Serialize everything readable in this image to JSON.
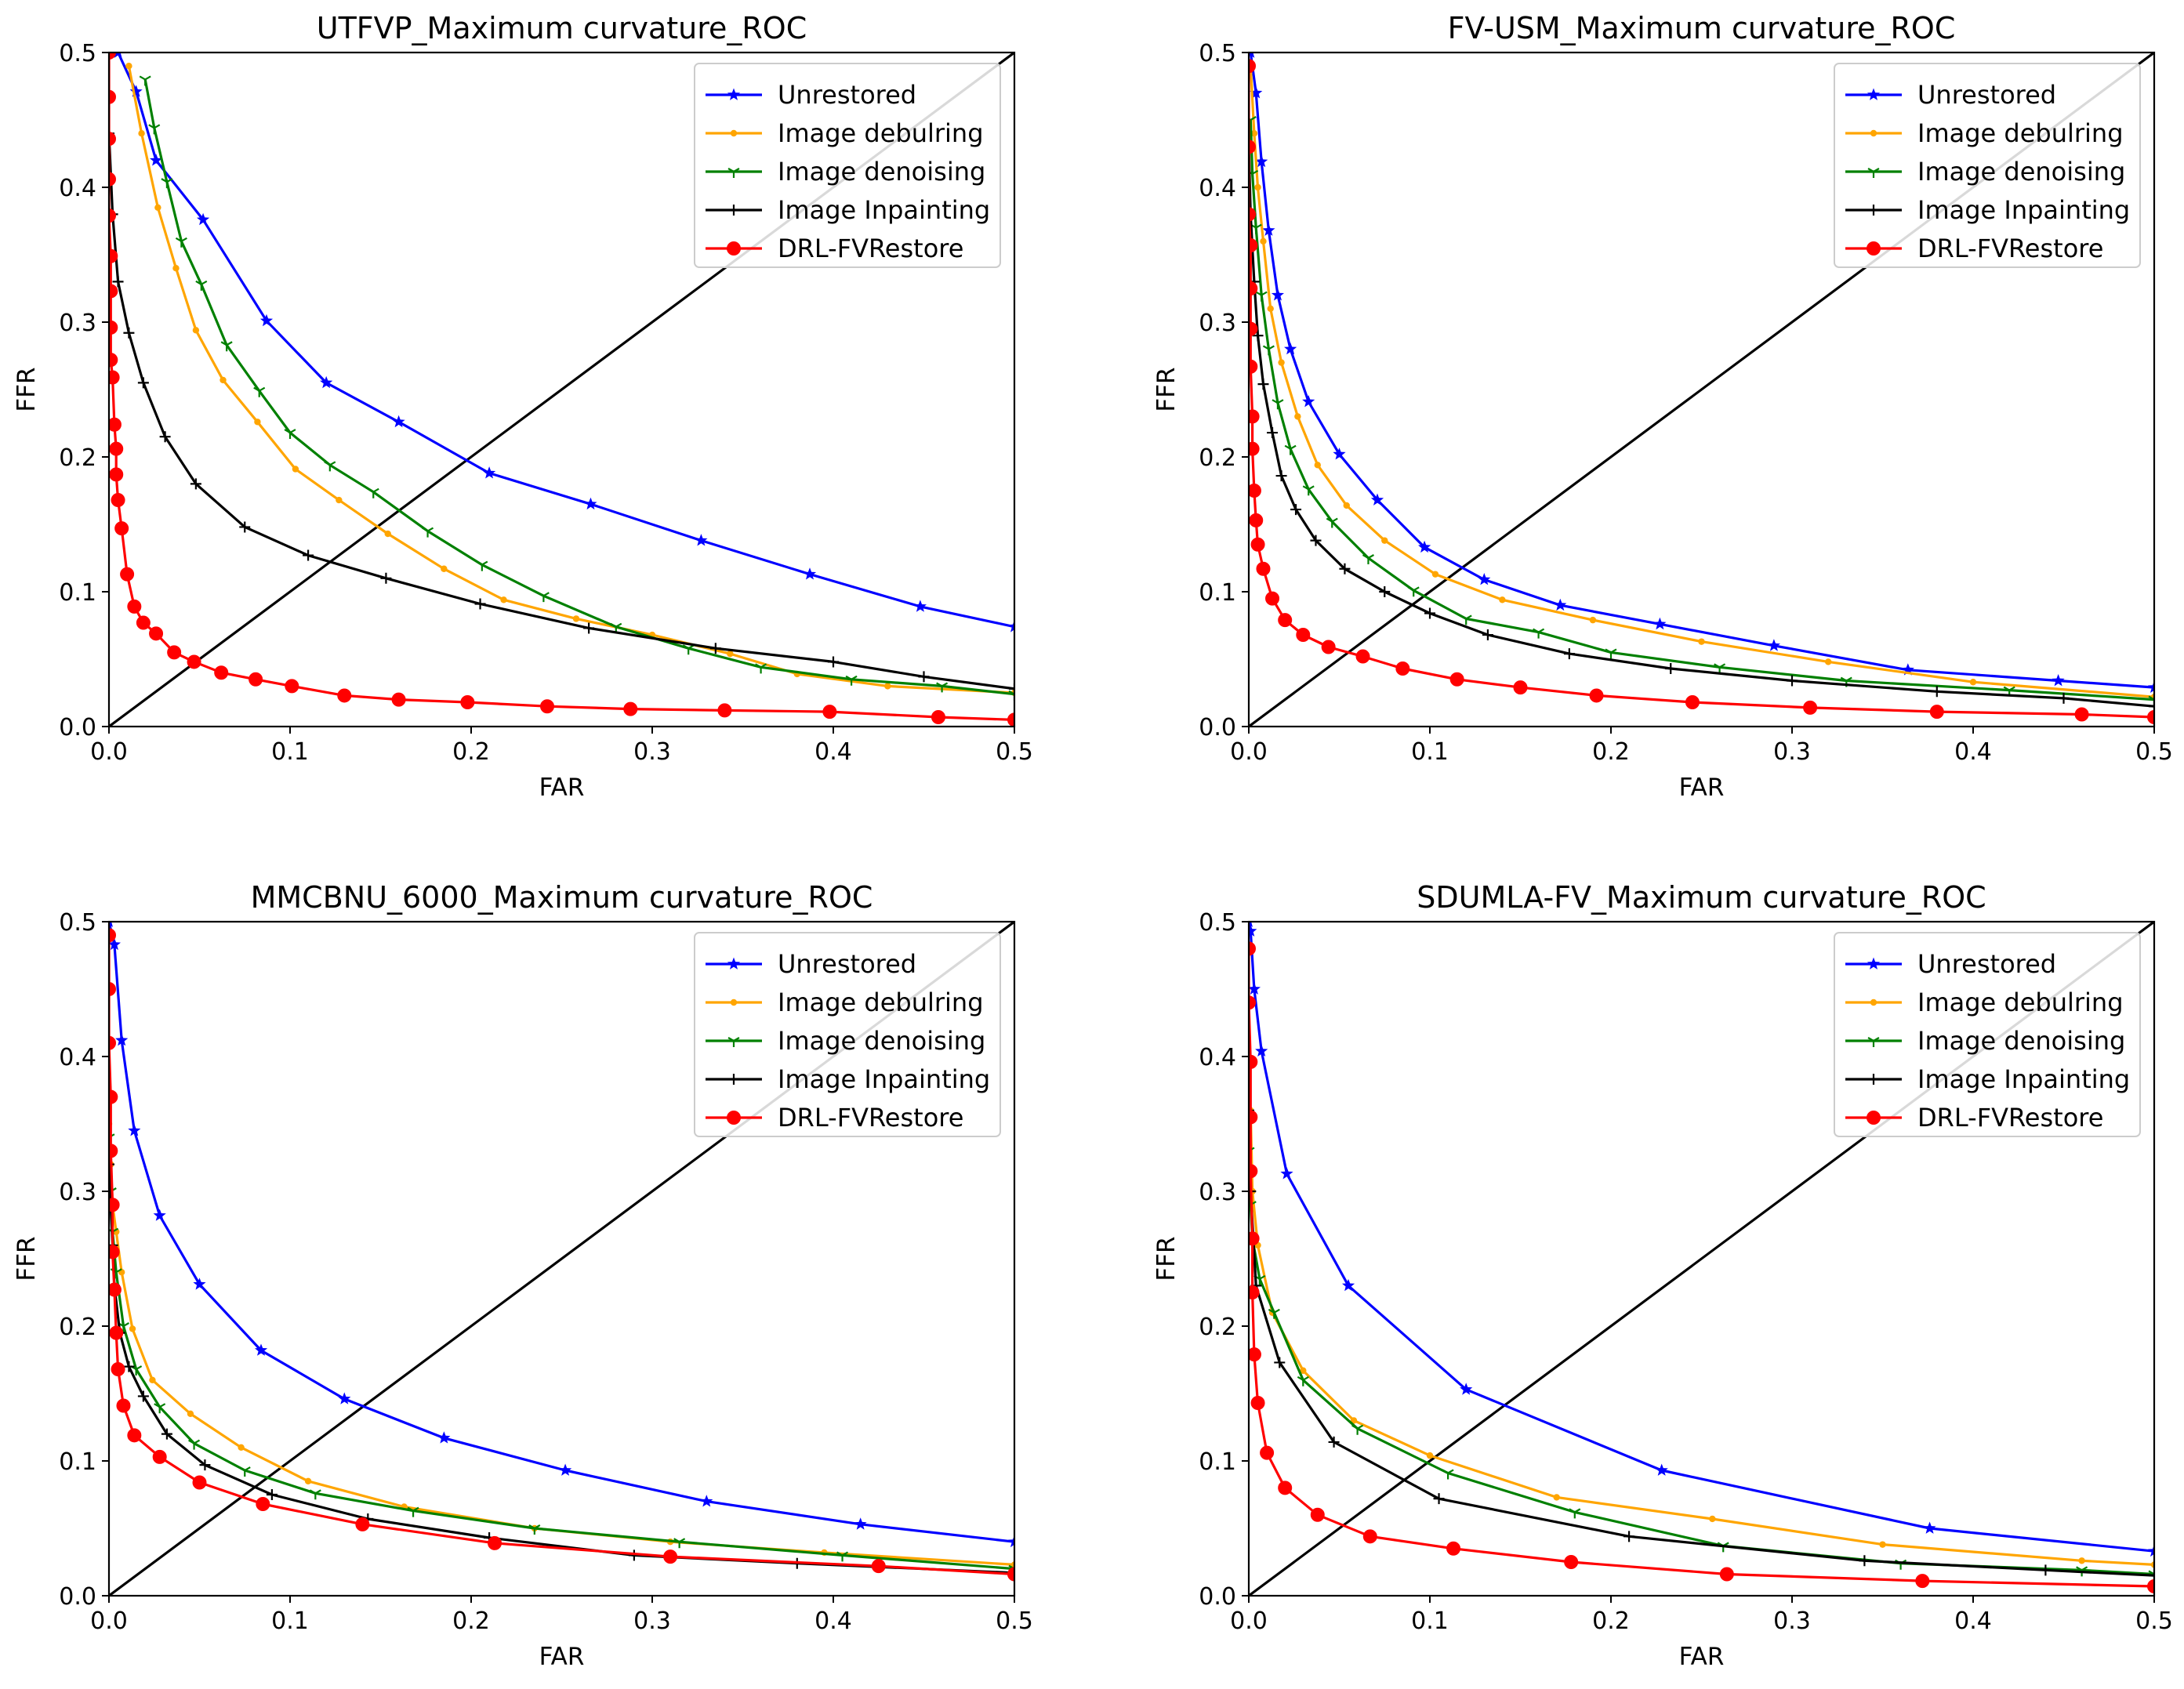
{
  "chart_data": [
    {
      "type": "line",
      "title": "UTFVP_Maximum curvature_ROC",
      "xlabel": "FAR",
      "ylabel": "FFR",
      "xlim": [
        0,
        0.5
      ],
      "ylim": [
        0,
        0.5
      ],
      "xticks": [
        "0.0",
        "0.1",
        "0.2",
        "0.3",
        "0.4",
        "0.5"
      ],
      "yticks": [
        "0.0",
        "0.1",
        "0.2",
        "0.3",
        "0.4",
        "0.5"
      ],
      "legend_position": "top-right",
      "reference_line": {
        "x": [
          0,
          0.5
        ],
        "y": [
          0,
          0.5
        ]
      },
      "series": [
        {
          "name": "Unrestored",
          "color": "#0000ff",
          "marker": "star",
          "x": [
            0.005,
            0.015,
            0.026,
            0.052,
            0.087,
            0.12,
            0.16,
            0.21,
            0.266,
            0.327,
            0.387,
            0.448,
            0.5
          ],
          "y": [
            0.5,
            0.471,
            0.42,
            0.376,
            0.301,
            0.255,
            0.226,
            0.188,
            0.165,
            0.138,
            0.113,
            0.089,
            0.074
          ]
        },
        {
          "name": "Image debulring",
          "color": "#ffa500",
          "marker": "dot",
          "x": [
            0.011,
            0.018,
            0.027,
            0.037,
            0.048,
            0.063,
            0.082,
            0.103,
            0.127,
            0.154,
            0.185,
            0.218,
            0.258,
            0.3,
            0.343,
            0.38,
            0.43,
            0.5
          ],
          "y": [
            0.49,
            0.44,
            0.385,
            0.34,
            0.294,
            0.257,
            0.226,
            0.191,
            0.168,
            0.143,
            0.117,
            0.094,
            0.08,
            0.068,
            0.054,
            0.039,
            0.03,
            0.025
          ]
        },
        {
          "name": "Image denoising",
          "color": "#008000",
          "marker": "tri",
          "x": [
            0.02,
            0.025,
            0.032,
            0.04,
            0.051,
            0.065,
            0.083,
            0.1,
            0.122,
            0.146,
            0.176,
            0.206,
            0.24,
            0.28,
            0.32,
            0.36,
            0.41,
            0.46,
            0.5
          ],
          "y": [
            0.48,
            0.444,
            0.404,
            0.36,
            0.328,
            0.283,
            0.249,
            0.218,
            0.194,
            0.174,
            0.145,
            0.12,
            0.097,
            0.074,
            0.058,
            0.044,
            0.035,
            0.03,
            0.024
          ]
        },
        {
          "name": "Image Inpainting",
          "color": "#000000",
          "marker": "plus",
          "x": [
            0.0,
            0.002,
            0.005,
            0.011,
            0.019,
            0.031,
            0.048,
            0.075,
            0.11,
            0.153,
            0.205,
            0.265,
            0.335,
            0.4,
            0.45,
            0.5
          ],
          "y": [
            0.44,
            0.38,
            0.33,
            0.292,
            0.255,
            0.215,
            0.18,
            0.148,
            0.127,
            0.11,
            0.091,
            0.073,
            0.058,
            0.048,
            0.037,
            0.028
          ]
        },
        {
          "name": "DRL-FVRestore",
          "color": "#ff0000",
          "marker": "circle",
          "x": [
            0.0,
            0.0,
            0.0,
            0.0,
            0.0,
            0.001,
            0.001,
            0.001,
            0.001,
            0.002,
            0.003,
            0.004,
            0.004,
            0.005,
            0.007,
            0.01,
            0.014,
            0.019,
            0.026,
            0.036,
            0.047,
            0.062,
            0.081,
            0.101,
            0.13,
            0.16,
            0.198,
            0.242,
            0.288,
            0.34,
            0.398,
            0.458,
            0.5
          ],
          "y": [
            0.5,
            0.467,
            0.436,
            0.406,
            0.379,
            0.349,
            0.323,
            0.296,
            0.272,
            0.259,
            0.224,
            0.206,
            0.187,
            0.168,
            0.147,
            0.113,
            0.089,
            0.077,
            0.069,
            0.055,
            0.048,
            0.04,
            0.035,
            0.03,
            0.023,
            0.02,
            0.018,
            0.015,
            0.013,
            0.012,
            0.011,
            0.007,
            0.005
          ]
        }
      ]
    },
    {
      "type": "line",
      "title": "FV-USM_Maximum curvature_ROC",
      "xlabel": "FAR",
      "ylabel": "FFR",
      "xlim": [
        0,
        0.5
      ],
      "ylim": [
        0,
        0.5
      ],
      "xticks": [
        "0.0",
        "0.1",
        "0.2",
        "0.3",
        "0.4",
        "0.5"
      ],
      "yticks": [
        "0.0",
        "0.1",
        "0.2",
        "0.3",
        "0.4",
        "0.5"
      ],
      "legend_position": "top-right",
      "reference_line": {
        "x": [
          0,
          0.5
        ],
        "y": [
          0,
          0.5
        ]
      },
      "series": [
        {
          "name": "Unrestored",
          "color": "#0000ff",
          "marker": "star",
          "x": [
            0.001,
            0.004,
            0.007,
            0.011,
            0.016,
            0.023,
            0.033,
            0.05,
            0.071,
            0.097,
            0.13,
            0.172,
            0.227,
            0.29,
            0.364,
            0.447,
            0.5
          ],
          "y": [
            0.5,
            0.47,
            0.419,
            0.368,
            0.32,
            0.28,
            0.241,
            0.202,
            0.168,
            0.133,
            0.109,
            0.09,
            0.076,
            0.06,
            0.042,
            0.034,
            0.029
          ]
        },
        {
          "name": "Image debulring",
          "color": "#ffa500",
          "marker": "dot",
          "x": [
            0.001,
            0.003,
            0.005,
            0.008,
            0.012,
            0.018,
            0.027,
            0.038,
            0.054,
            0.075,
            0.103,
            0.14,
            0.19,
            0.25,
            0.32,
            0.4,
            0.5
          ],
          "y": [
            0.49,
            0.44,
            0.4,
            0.36,
            0.31,
            0.27,
            0.23,
            0.194,
            0.164,
            0.138,
            0.113,
            0.094,
            0.079,
            0.063,
            0.048,
            0.033,
            0.022
          ]
        },
        {
          "name": "Image denoising",
          "color": "#008000",
          "marker": "tri",
          "x": [
            0.001,
            0.002,
            0.004,
            0.007,
            0.011,
            0.016,
            0.023,
            0.033,
            0.046,
            0.066,
            0.091,
            0.12,
            0.16,
            0.2,
            0.26,
            0.33,
            0.42,
            0.5
          ],
          "y": [
            0.45,
            0.41,
            0.37,
            0.32,
            0.28,
            0.24,
            0.206,
            0.176,
            0.152,
            0.125,
            0.101,
            0.08,
            0.07,
            0.055,
            0.044,
            0.034,
            0.027,
            0.02
          ]
        },
        {
          "name": "Image Inpainting",
          "color": "#000000",
          "marker": "plus",
          "x": [
            0.0,
            0.001,
            0.003,
            0.005,
            0.008,
            0.013,
            0.018,
            0.026,
            0.037,
            0.053,
            0.075,
            0.1,
            0.132,
            0.177,
            0.233,
            0.3,
            0.38,
            0.45,
            0.5
          ],
          "y": [
            0.43,
            0.38,
            0.33,
            0.29,
            0.254,
            0.218,
            0.186,
            0.161,
            0.138,
            0.117,
            0.1,
            0.084,
            0.068,
            0.054,
            0.043,
            0.034,
            0.026,
            0.021,
            0.015
          ]
        },
        {
          "name": "DRL-FVRestore",
          "color": "#ff0000",
          "marker": "circle",
          "x": [
            0.0,
            0.0,
            0.0,
            0.001,
            0.001,
            0.001,
            0.001,
            0.002,
            0.002,
            0.003,
            0.004,
            0.005,
            0.008,
            0.013,
            0.02,
            0.03,
            0.044,
            0.063,
            0.085,
            0.115,
            0.15,
            0.192,
            0.245,
            0.31,
            0.38,
            0.46,
            0.5
          ],
          "y": [
            0.49,
            0.43,
            0.38,
            0.357,
            0.325,
            0.295,
            0.267,
            0.23,
            0.206,
            0.175,
            0.153,
            0.135,
            0.117,
            0.095,
            0.079,
            0.068,
            0.059,
            0.052,
            0.043,
            0.035,
            0.029,
            0.023,
            0.018,
            0.014,
            0.011,
            0.009,
            0.007
          ]
        }
      ]
    },
    {
      "type": "line",
      "title": "MMCBNU_6000_Maximum curvature_ROC",
      "xlabel": "FAR",
      "ylabel": "FFR",
      "xlim": [
        0,
        0.5
      ],
      "ylim": [
        0,
        0.5
      ],
      "xticks": [
        "0.0",
        "0.1",
        "0.2",
        "0.3",
        "0.4",
        "0.5"
      ],
      "yticks": [
        "0.0",
        "0.1",
        "0.2",
        "0.3",
        "0.4",
        "0.5"
      ],
      "legend_position": "top-right",
      "reference_line": {
        "x": [
          0,
          0.5
        ],
        "y": [
          0,
          0.5
        ]
      },
      "series": [
        {
          "name": "Unrestored",
          "color": "#0000ff",
          "marker": "star",
          "x": [
            0.0,
            0.003,
            0.007,
            0.014,
            0.028,
            0.05,
            0.084,
            0.13,
            0.185,
            0.252,
            0.33,
            0.415,
            0.5
          ],
          "y": [
            0.5,
            0.483,
            0.412,
            0.345,
            0.282,
            0.231,
            0.182,
            0.146,
            0.117,
            0.093,
            0.07,
            0.053,
            0.04
          ]
        },
        {
          "name": "Image debulring",
          "color": "#ffa500",
          "marker": "dot",
          "x": [
            0.0,
            0.001,
            0.002,
            0.004,
            0.007,
            0.013,
            0.024,
            0.045,
            0.073,
            0.11,
            0.163,
            0.235,
            0.31,
            0.395,
            0.5
          ],
          "y": [
            0.35,
            0.32,
            0.29,
            0.27,
            0.24,
            0.198,
            0.16,
            0.135,
            0.11,
            0.085,
            0.066,
            0.05,
            0.04,
            0.032,
            0.023
          ]
        },
        {
          "name": "Image denoising",
          "color": "#008000",
          "marker": "tri",
          "x": [
            0.0,
            0.001,
            0.002,
            0.004,
            0.008,
            0.015,
            0.028,
            0.047,
            0.075,
            0.114,
            0.168,
            0.235,
            0.315,
            0.405,
            0.5
          ],
          "y": [
            0.34,
            0.3,
            0.27,
            0.24,
            0.2,
            0.168,
            0.14,
            0.113,
            0.093,
            0.076,
            0.063,
            0.05,
            0.04,
            0.03,
            0.02
          ]
        },
        {
          "name": "Image Inpainting",
          "color": "#000000",
          "marker": "plus",
          "x": [
            0.0,
            0.001,
            0.002,
            0.003,
            0.006,
            0.011,
            0.019,
            0.032,
            0.053,
            0.09,
            0.143,
            0.21,
            0.29,
            0.38,
            0.5
          ],
          "y": [
            0.32,
            0.29,
            0.26,
            0.23,
            0.195,
            0.17,
            0.148,
            0.12,
            0.097,
            0.075,
            0.057,
            0.043,
            0.03,
            0.024,
            0.017
          ]
        },
        {
          "name": "DRL-FVRestore",
          "color": "#ff0000",
          "marker": "circle",
          "x": [
            0.0,
            0.0,
            0.0,
            0.001,
            0.001,
            0.002,
            0.002,
            0.003,
            0.004,
            0.005,
            0.008,
            0.014,
            0.028,
            0.05,
            0.085,
            0.14,
            0.213,
            0.31,
            0.425,
            0.5
          ],
          "y": [
            0.49,
            0.45,
            0.41,
            0.37,
            0.33,
            0.29,
            0.255,
            0.227,
            0.195,
            0.168,
            0.141,
            0.119,
            0.103,
            0.084,
            0.068,
            0.053,
            0.039,
            0.029,
            0.022,
            0.016
          ]
        }
      ]
    },
    {
      "type": "line",
      "title": "SDUMLA-FV_Maximum curvature_ROC",
      "xlabel": "FAR",
      "ylabel": "FFR",
      "xlim": [
        0,
        0.5
      ],
      "ylim": [
        0,
        0.5
      ],
      "xticks": [
        "0.0",
        "0.1",
        "0.2",
        "0.3",
        "0.4",
        "0.5"
      ],
      "yticks": [
        "0.0",
        "0.1",
        "0.2",
        "0.3",
        "0.4",
        "0.5"
      ],
      "legend_position": "top-right",
      "reference_line": {
        "x": [
          0,
          0.5
        ],
        "y": [
          0,
          0.5
        ]
      },
      "series": [
        {
          "name": "Unrestored",
          "color": "#0000ff",
          "marker": "star",
          "x": [
            0.0,
            0.001,
            0.003,
            0.007,
            0.021,
            0.055,
            0.12,
            0.228,
            0.376,
            0.5
          ],
          "y": [
            0.5,
            0.493,
            0.45,
            0.404,
            0.313,
            0.23,
            0.153,
            0.093,
            0.05,
            0.033
          ]
        },
        {
          "name": "Image debulring",
          "color": "#ffa500",
          "marker": "dot",
          "x": [
            0.001,
            0.002,
            0.005,
            0.013,
            0.03,
            0.058,
            0.1,
            0.17,
            0.256,
            0.35,
            0.46,
            0.5
          ],
          "y": [
            0.36,
            0.3,
            0.26,
            0.21,
            0.167,
            0.13,
            0.104,
            0.073,
            0.057,
            0.038,
            0.026,
            0.023
          ]
        },
        {
          "name": "Image denoising",
          "color": "#008000",
          "marker": "tri",
          "x": [
            0.0,
            0.001,
            0.002,
            0.006,
            0.014,
            0.03,
            0.06,
            0.11,
            0.18,
            0.262,
            0.36,
            0.46,
            0.5
          ],
          "y": [
            0.33,
            0.29,
            0.265,
            0.235,
            0.21,
            0.16,
            0.124,
            0.091,
            0.062,
            0.037,
            0.024,
            0.019,
            0.016
          ]
        },
        {
          "name": "Image Inpainting",
          "color": "#000000",
          "marker": "plus",
          "x": [
            0.0,
            0.001,
            0.004,
            0.017,
            0.047,
            0.105,
            0.21,
            0.34,
            0.44,
            0.5
          ],
          "y": [
            0.36,
            0.3,
            0.23,
            0.173,
            0.114,
            0.072,
            0.044,
            0.026,
            0.019,
            0.015
          ]
        },
        {
          "name": "DRL-FVRestore",
          "color": "#ff0000",
          "marker": "circle",
          "x": [
            0.0,
            0.0,
            0.001,
            0.001,
            0.001,
            0.002,
            0.002,
            0.003,
            0.005,
            0.01,
            0.02,
            0.038,
            0.067,
            0.113,
            0.178,
            0.264,
            0.372,
            0.5
          ],
          "y": [
            0.48,
            0.44,
            0.396,
            0.355,
            0.315,
            0.265,
            0.225,
            0.179,
            0.143,
            0.106,
            0.08,
            0.06,
            0.044,
            0.035,
            0.025,
            0.016,
            0.011,
            0.007
          ]
        }
      ]
    }
  ]
}
